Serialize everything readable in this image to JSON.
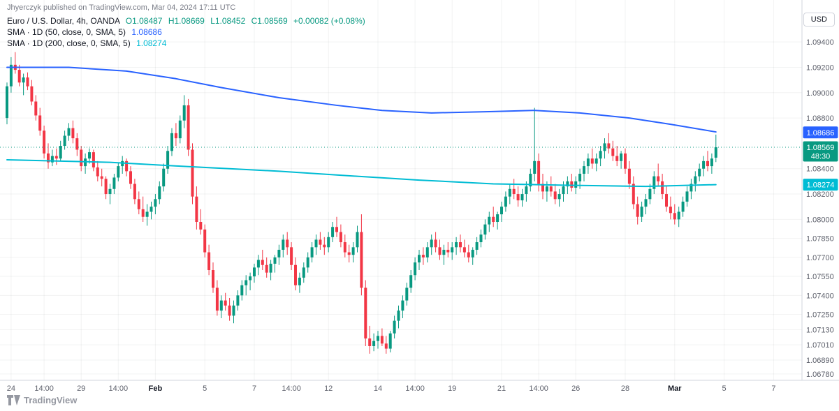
{
  "attribution": "Jhyerczyk published on TradingView.com, Mar 04, 2024 17:11 UTC",
  "currency_button": "USD",
  "logo_text": "TradingView",
  "legend": {
    "symbol": "Euro / U.S. Dollar, 4h, OANDA",
    "ohlc": {
      "o": "O1.08487",
      "h": "H1.08669",
      "l": "L1.08452",
      "c": "C1.08569",
      "change": "+0.00082 (+0.08%)"
    },
    "sma50_label": "SMA · 1D (50, close, 0, SMA, 5)",
    "sma50_value": "1.08686",
    "sma200_label": "SMA · 1D (200, close, 0, SMA, 5)",
    "sma200_value": "1.08274"
  },
  "colors": {
    "up": "#089981",
    "down": "#f23645",
    "sma50": "#2962ff",
    "sma200": "#00bcd4",
    "axis_text": "#5d606b",
    "axis_major_text": "#131722",
    "grid": "rgba(42,46,57,0.06)",
    "axis_border": "#d1d4dc"
  },
  "chart_data": {
    "type": "candlestick",
    "title": "Euro / U.S. Dollar, 4h, OANDA",
    "last_price": 1.08569,
    "countdown": "48:30",
    "price_axis": {
      "top": 1.0961,
      "bottom": 1.0673,
      "ticks": [
        "1.09400",
        "1.09200",
        "1.09000",
        "1.08800",
        "1.08400",
        "1.08200",
        "1.08000",
        "1.07850",
        "1.07700",
        "1.07550",
        "1.07400",
        "1.07250",
        "1.07130",
        "1.07010",
        "1.06890",
        "1.06780"
      ]
    },
    "time_axis": {
      "slots": 193,
      "ticks": [
        {
          "i": 1,
          "label": "24"
        },
        {
          "i": 9,
          "label": "14:00"
        },
        {
          "i": 18,
          "label": "29"
        },
        {
          "i": 27,
          "label": "14:00"
        },
        {
          "i": 36,
          "label": "Feb",
          "major": true
        },
        {
          "i": 48,
          "label": "5"
        },
        {
          "i": 60,
          "label": "7"
        },
        {
          "i": 69,
          "label": "14:00"
        },
        {
          "i": 78,
          "label": "12"
        },
        {
          "i": 90,
          "label": "14"
        },
        {
          "i": 99,
          "label": "14:00"
        },
        {
          "i": 108,
          "label": "19"
        },
        {
          "i": 120,
          "label": "21"
        },
        {
          "i": 129,
          "label": "14:00"
        },
        {
          "i": 138,
          "label": "26"
        },
        {
          "i": 150,
          "label": "28"
        },
        {
          "i": 162,
          "label": "Mar",
          "major": true
        },
        {
          "i": 174,
          "label": "5"
        },
        {
          "i": 186,
          "label": "7"
        }
      ]
    },
    "sma50": {
      "value": 1.08686,
      "points": [
        [
          0,
          1.092
        ],
        [
          15,
          1.092
        ],
        [
          29,
          1.0917
        ],
        [
          41,
          1.0911
        ],
        [
          52,
          1.0904
        ],
        [
          66,
          1.0896
        ],
        [
          80,
          1.089
        ],
        [
          91,
          1.0886
        ],
        [
          103,
          1.0884
        ],
        [
          117,
          1.0885
        ],
        [
          128,
          1.0886
        ],
        [
          139,
          1.0884
        ],
        [
          151,
          1.088
        ],
        [
          161,
          1.0875
        ],
        [
          172,
          1.0869
        ]
      ]
    },
    "sma200": {
      "value": 1.08274,
      "points": [
        [
          0,
          1.0847
        ],
        [
          25,
          1.0845
        ],
        [
          42,
          1.0842
        ],
        [
          66,
          1.0838
        ],
        [
          85,
          1.0834
        ],
        [
          100,
          1.0831
        ],
        [
          118,
          1.0828
        ],
        [
          135,
          1.0827
        ],
        [
          155,
          1.0826
        ],
        [
          172,
          1.08274
        ]
      ]
    },
    "candles": [
      [
        1.088,
        1.0908,
        1.0875,
        1.0905
      ],
      [
        1.0905,
        1.0928,
        1.09,
        1.0922
      ],
      [
        1.0922,
        1.0932,
        1.0915,
        1.0918
      ],
      [
        1.0918,
        1.0922,
        1.0905,
        1.0908
      ],
      [
        1.0908,
        1.0915,
        1.0898,
        1.0912
      ],
      [
        1.0912,
        1.0916,
        1.0902,
        1.0905
      ],
      [
        1.0905,
        1.091,
        1.089,
        1.0893
      ],
      [
        1.0893,
        1.0898,
        1.0878,
        1.0882
      ],
      [
        1.0882,
        1.0888,
        1.0866,
        1.087
      ],
      [
        1.087,
        1.0874,
        1.0848,
        1.0852
      ],
      [
        1.0852,
        1.086,
        1.084,
        1.0845
      ],
      [
        1.0845,
        1.0855,
        1.0842,
        1.085
      ],
      [
        1.085,
        1.0856,
        1.0843,
        1.0848
      ],
      [
        1.0848,
        1.0862,
        1.0846,
        1.0858
      ],
      [
        1.0858,
        1.087,
        1.0855,
        1.0866
      ],
      [
        1.0866,
        1.0876,
        1.0862,
        1.0872
      ],
      [
        1.0872,
        1.0878,
        1.086,
        1.0864
      ],
      [
        1.0864,
        1.0868,
        1.085,
        1.0855
      ],
      [
        1.0855,
        1.0858,
        1.0838,
        1.0842
      ],
      [
        1.0842,
        1.0852,
        1.0836,
        1.0848
      ],
      [
        1.0848,
        1.0856,
        1.0844,
        1.0853
      ],
      [
        1.0853,
        1.0855,
        1.0838,
        1.0841
      ],
      [
        1.0841,
        1.0846,
        1.083,
        1.0834
      ],
      [
        1.0834,
        1.084,
        1.0826,
        1.0832
      ],
      [
        1.0832,
        1.0834,
        1.0816,
        1.082
      ],
      [
        1.082,
        1.0828,
        1.0812,
        1.0824
      ],
      [
        1.0824,
        1.0836,
        1.082,
        1.0833
      ],
      [
        1.0833,
        1.0845,
        1.083,
        1.0842
      ],
      [
        1.0842,
        1.085,
        1.0836,
        1.0846
      ],
      [
        1.0846,
        1.0848,
        1.0834,
        1.0838
      ],
      [
        1.0838,
        1.0842,
        1.0824,
        1.0828
      ],
      [
        1.0828,
        1.0832,
        1.0812,
        1.0816
      ],
      [
        1.0816,
        1.0822,
        1.0804,
        1.0808
      ],
      [
        1.0808,
        1.0818,
        1.0798,
        1.0802
      ],
      [
        1.0802,
        1.0812,
        1.0795,
        1.0806
      ],
      [
        1.0806,
        1.0814,
        1.08,
        1.081
      ],
      [
        1.081,
        1.082,
        1.0804,
        1.0816
      ],
      [
        1.0816,
        1.083,
        1.0812,
        1.0826
      ],
      [
        1.0826,
        1.0844,
        1.0822,
        1.084
      ],
      [
        1.084,
        1.0858,
        1.0836,
        1.0854
      ],
      [
        1.0854,
        1.0872,
        1.085,
        1.0868
      ],
      [
        1.0868,
        1.0876,
        1.0858,
        1.0864
      ],
      [
        1.0864,
        1.0882,
        1.086,
        1.0878
      ],
      [
        1.0878,
        1.0898,
        1.0872,
        1.089
      ],
      [
        1.089,
        1.0895,
        1.085,
        1.0855
      ],
      [
        1.0855,
        1.086,
        1.0812,
        1.0818
      ],
      [
        1.0818,
        1.0826,
        1.0792,
        1.0798
      ],
      [
        1.0798,
        1.0808,
        1.0788,
        1.0792
      ],
      [
        1.0792,
        1.0796,
        1.077,
        1.0774
      ],
      [
        1.0774,
        1.078,
        1.0756,
        1.076
      ],
      [
        1.076,
        1.0766,
        1.0742,
        1.0746
      ],
      [
        1.0746,
        1.0752,
        1.0724,
        1.0728
      ],
      [
        1.0728,
        1.074,
        1.0722,
        1.0736
      ],
      [
        1.0736,
        1.0742,
        1.0728,
        1.0732
      ],
      [
        1.0732,
        1.0738,
        1.072,
        1.0724
      ],
      [
        1.0724,
        1.0736,
        1.0718,
        1.0732
      ],
      [
        1.0732,
        1.0744,
        1.0728,
        1.074
      ],
      [
        1.074,
        1.0752,
        1.0736,
        1.0748
      ],
      [
        1.0748,
        1.0756,
        1.074,
        1.0752
      ],
      [
        1.0752,
        1.0758,
        1.0744,
        1.0755
      ],
      [
        1.0755,
        1.0765,
        1.075,
        1.0762
      ],
      [
        1.0762,
        1.0772,
        1.0756,
        1.0768
      ],
      [
        1.0768,
        1.0776,
        1.076,
        1.0764
      ],
      [
        1.0764,
        1.077,
        1.0754,
        1.0758
      ],
      [
        1.0758,
        1.0768,
        1.0752,
        1.0765
      ],
      [
        1.0765,
        1.0772,
        1.0758,
        1.077
      ],
      [
        1.077,
        1.078,
        1.0764,
        1.0776
      ],
      [
        1.0776,
        1.0788,
        1.077,
        1.0784
      ],
      [
        1.0784,
        1.079,
        1.0772,
        1.0778
      ],
      [
        1.0778,
        1.0782,
        1.076,
        1.0764
      ],
      [
        1.0764,
        1.077,
        1.0744,
        1.0748
      ],
      [
        1.0748,
        1.0758,
        1.0742,
        1.0754
      ],
      [
        1.0754,
        1.0766,
        1.075,
        1.0762
      ],
      [
        1.0762,
        1.0774,
        1.0758,
        1.077
      ],
      [
        1.077,
        1.0782,
        1.0766,
        1.0778
      ],
      [
        1.0778,
        1.0788,
        1.0772,
        1.0784
      ],
      [
        1.0784,
        1.079,
        1.0776,
        1.078
      ],
      [
        1.078,
        1.0786,
        1.0772,
        1.0778
      ],
      [
        1.0778,
        1.079,
        1.0774,
        1.0786
      ],
      [
        1.0786,
        1.0798,
        1.0782,
        1.0794
      ],
      [
        1.0794,
        1.0802,
        1.0786,
        1.079
      ],
      [
        1.079,
        1.0796,
        1.0778,
        1.0782
      ],
      [
        1.0782,
        1.0788,
        1.077,
        1.0774
      ],
      [
        1.0774,
        1.078,
        1.0766,
        1.0772
      ],
      [
        1.0772,
        1.0782,
        1.0766,
        1.0778
      ],
      [
        1.0778,
        1.0795,
        1.0774,
        1.079
      ],
      [
        1.079,
        1.0804,
        1.074,
        1.0746
      ],
      [
        1.0746,
        1.0752,
        1.07,
        1.0706
      ],
      [
        1.0706,
        1.0716,
        1.0694,
        1.07
      ],
      [
        1.07,
        1.071,
        1.0696,
        1.0704
      ],
      [
        1.0704,
        1.0712,
        1.0698,
        1.0708
      ],
      [
        1.0708,
        1.0714,
        1.07,
        1.0702
      ],
      [
        1.0702,
        1.0708,
        1.0694,
        1.0698
      ],
      [
        1.0698,
        1.0712,
        1.0695,
        1.071
      ],
      [
        1.071,
        1.0724,
        1.0706,
        1.072
      ],
      [
        1.072,
        1.0732,
        1.0714,
        1.0728
      ],
      [
        1.0728,
        1.074,
        1.0722,
        1.0736
      ],
      [
        1.0736,
        1.075,
        1.0732,
        1.0746
      ],
      [
        1.0746,
        1.076,
        1.0742,
        1.0756
      ],
      [
        1.0756,
        1.077,
        1.0752,
        1.0766
      ],
      [
        1.0766,
        1.0776,
        1.076,
        1.0772
      ],
      [
        1.0772,
        1.0778,
        1.0764,
        1.077
      ],
      [
        1.077,
        1.0782,
        1.0766,
        1.0778
      ],
      [
        1.0778,
        1.0788,
        1.0772,
        1.0784
      ],
      [
        1.0784,
        1.079,
        1.0774,
        1.0778
      ],
      [
        1.0778,
        1.0784,
        1.0768,
        1.0772
      ],
      [
        1.0772,
        1.078,
        1.0764,
        1.0776
      ],
      [
        1.0776,
        1.0782,
        1.077,
        1.0774
      ],
      [
        1.0774,
        1.0782,
        1.0768,
        1.0778
      ],
      [
        1.0778,
        1.0786,
        1.0772,
        1.0782
      ],
      [
        1.0782,
        1.0788,
        1.0774,
        1.0778
      ],
      [
        1.0778,
        1.0784,
        1.077,
        1.0774
      ],
      [
        1.0774,
        1.078,
        1.0766,
        1.077
      ],
      [
        1.077,
        1.0778,
        1.0764,
        1.0776
      ],
      [
        1.0776,
        1.0786,
        1.0772,
        1.0782
      ],
      [
        1.0782,
        1.0792,
        1.0778,
        1.0788
      ],
      [
        1.0788,
        1.08,
        1.0784,
        1.0796
      ],
      [
        1.0796,
        1.0806,
        1.079,
        1.0802
      ],
      [
        1.0802,
        1.081,
        1.0794,
        1.0798
      ],
      [
        1.0798,
        1.0806,
        1.0792,
        1.0804
      ],
      [
        1.0804,
        1.0814,
        1.0798,
        1.081
      ],
      [
        1.081,
        1.0822,
        1.0806,
        1.0818
      ],
      [
        1.0818,
        1.0828,
        1.0812,
        1.0824
      ],
      [
        1.0824,
        1.0832,
        1.0816,
        1.082
      ],
      [
        1.082,
        1.0826,
        1.081,
        1.0815
      ],
      [
        1.0815,
        1.0824,
        1.081,
        1.082
      ],
      [
        1.082,
        1.083,
        1.0814,
        1.0826
      ],
      [
        1.0826,
        1.084,
        1.0822,
        1.0836
      ],
      [
        1.0836,
        1.0888,
        1.083,
        1.0846
      ],
      [
        1.0846,
        1.0852,
        1.0822,
        1.0828
      ],
      [
        1.0828,
        1.0836,
        1.0816,
        1.0822
      ],
      [
        1.0822,
        1.083,
        1.0814,
        1.0826
      ],
      [
        1.0826,
        1.0834,
        1.0818,
        1.0822
      ],
      [
        1.0822,
        1.0828,
        1.0812,
        1.0816
      ],
      [
        1.0816,
        1.0824,
        1.081,
        1.082
      ],
      [
        1.082,
        1.083,
        1.0814,
        1.0826
      ],
      [
        1.0826,
        1.0834,
        1.082,
        1.083
      ],
      [
        1.083,
        1.0836,
        1.0822,
        1.0825
      ],
      [
        1.0825,
        1.0834,
        1.082,
        1.083
      ],
      [
        1.083,
        1.084,
        1.0824,
        1.0836
      ],
      [
        1.0836,
        1.0846,
        1.083,
        1.0842
      ],
      [
        1.0842,
        1.0852,
        1.0836,
        1.0848
      ],
      [
        1.0848,
        1.0856,
        1.084,
        1.0844
      ],
      [
        1.0844,
        1.0852,
        1.0838,
        1.0848
      ],
      [
        1.0848,
        1.0858,
        1.0842,
        1.0854
      ],
      [
        1.0854,
        1.0864,
        1.0848,
        1.086
      ],
      [
        1.086,
        1.0868,
        1.0852,
        1.0856
      ],
      [
        1.0856,
        1.0862,
        1.0846,
        1.085
      ],
      [
        1.085,
        1.0858,
        1.0842,
        1.0846
      ],
      [
        1.0846,
        1.0854,
        1.084,
        1.0852
      ],
      [
        1.0852,
        1.0856,
        1.0836,
        1.084
      ],
      [
        1.084,
        1.0846,
        1.0824,
        1.0828
      ],
      [
        1.0828,
        1.0834,
        1.0808,
        1.0812
      ],
      [
        1.0812,
        1.0818,
        1.0796,
        1.0802
      ],
      [
        1.0802,
        1.0814,
        1.0798,
        1.081
      ],
      [
        1.081,
        1.082,
        1.0804,
        1.0816
      ],
      [
        1.0816,
        1.0828,
        1.0812,
        1.0824
      ],
      [
        1.0824,
        1.0838,
        1.082,
        1.0834
      ],
      [
        1.0834,
        1.0844,
        1.0826,
        1.083
      ],
      [
        1.083,
        1.0836,
        1.0816,
        1.082
      ],
      [
        1.082,
        1.0826,
        1.0806,
        1.081
      ],
      [
        1.081,
        1.0818,
        1.08,
        1.0805
      ],
      [
        1.0805,
        1.0812,
        1.0796,
        1.08
      ],
      [
        1.08,
        1.081,
        1.0794,
        1.0806
      ],
      [
        1.0806,
        1.0818,
        1.0802,
        1.0814
      ],
      [
        1.0814,
        1.0826,
        1.081,
        1.0822
      ],
      [
        1.0822,
        1.0832,
        1.0816,
        1.0828
      ],
      [
        1.0828,
        1.0838,
        1.0822,
        1.0834
      ],
      [
        1.0834,
        1.0844,
        1.083,
        1.084
      ],
      [
        1.084,
        1.085,
        1.0834,
        1.0846
      ],
      [
        1.0846,
        1.0854,
        1.0838,
        1.0842
      ],
      [
        1.0842,
        1.0852,
        1.0836,
        1.0848
      ],
      [
        1.08487,
        1.08669,
        1.08452,
        1.08569
      ]
    ]
  }
}
